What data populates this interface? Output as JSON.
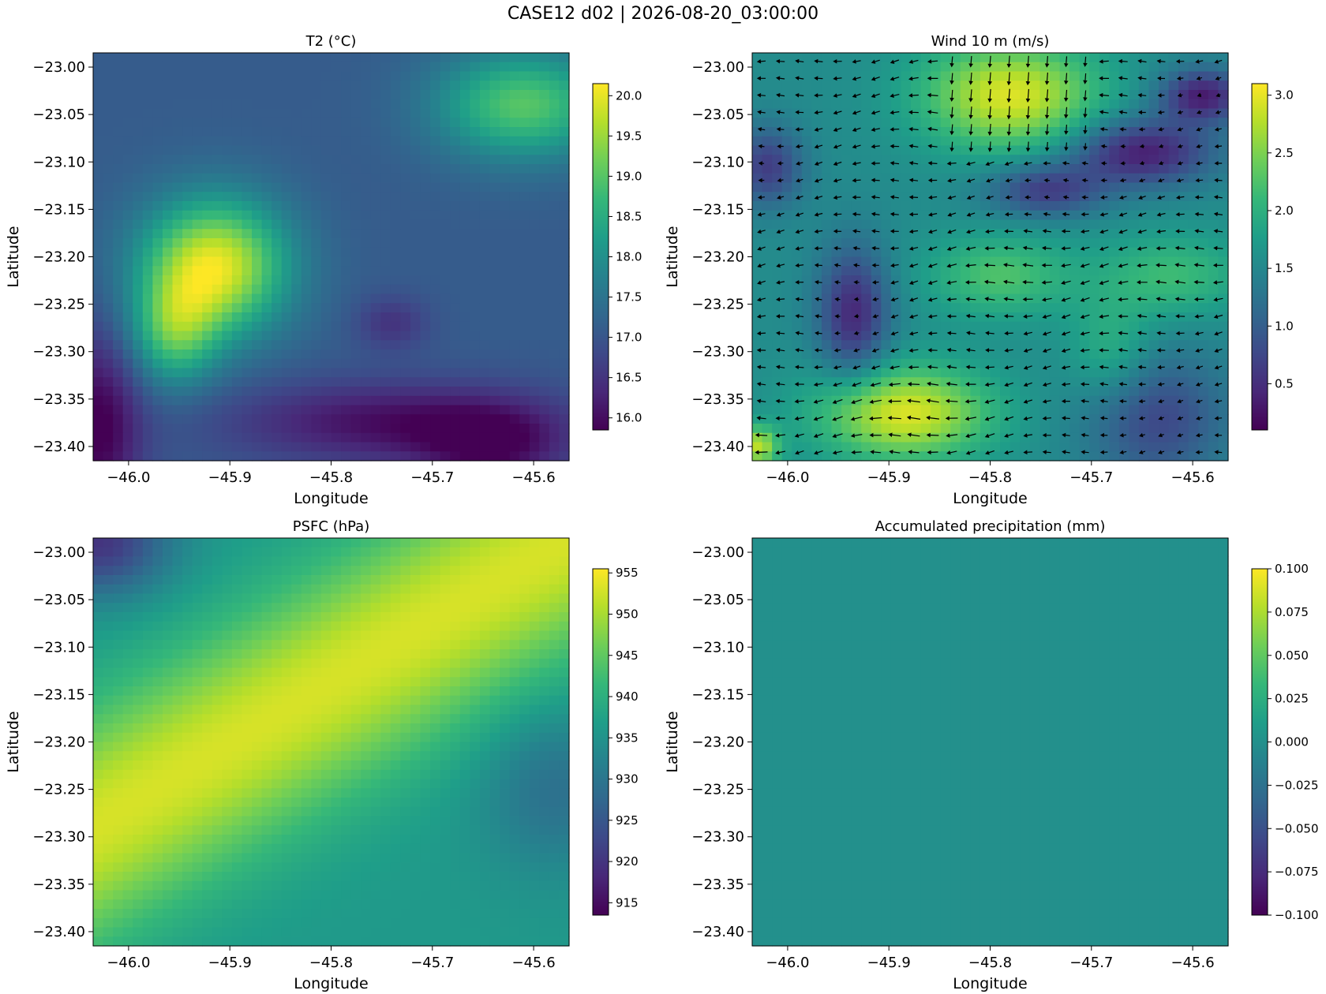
{
  "figure": {
    "suptitle": "CASE12 d02 | 2026-08-20_03:00:00"
  },
  "chart_data": [
    {
      "type": "heatmap",
      "title": "T2 (°C)",
      "xlabel": "Longitude",
      "ylabel": "Latitude",
      "colormap": "viridis",
      "xlim": [
        -46.035,
        -45.565
      ],
      "ylim": [
        -23.415,
        -22.985
      ],
      "xticks": [
        "−46.0",
        "−45.9",
        "−45.8",
        "−45.7",
        "−45.6"
      ],
      "yticks": [
        "−23.00",
        "−23.05",
        "−23.10",
        "−23.15",
        "−23.20",
        "−23.25",
        "−23.30",
        "−23.35",
        "−23.40"
      ],
      "colorbar": {
        "vmin": 15.85,
        "vmax": 20.15,
        "ticks": [
          "16.0",
          "16.5",
          "17.0",
          "17.5",
          "18.0",
          "18.5",
          "19.0",
          "19.5",
          "20.0"
        ]
      },
      "field": {
        "base": 17.1,
        "blobs": [
          {
            "lon": -45.915,
            "lat": -23.21,
            "rlon": 0.05,
            "rlat": 0.05,
            "amp": 2.9
          },
          {
            "lon": -45.955,
            "lat": -23.28,
            "rlon": 0.03,
            "rlat": 0.04,
            "amp": 1.6
          },
          {
            "lon": -45.61,
            "lat": -23.04,
            "rlon": 0.06,
            "rlat": 0.04,
            "amp": 1.9
          },
          {
            "lon": -45.74,
            "lat": -23.375,
            "rlon": 0.11,
            "rlat": 0.03,
            "amp": -1.1
          },
          {
            "lon": -46.03,
            "lat": -23.38,
            "rlon": 0.03,
            "rlat": 0.07,
            "amp": -1.3
          },
          {
            "lon": -45.74,
            "lat": -23.27,
            "rlon": 0.025,
            "rlat": 0.02,
            "amp": -0.6
          },
          {
            "lon": -45.64,
            "lat": -23.4,
            "rlon": 0.05,
            "rlat": 0.03,
            "amp": -1.0
          }
        ]
      }
    },
    {
      "type": "heatmap",
      "title": "Wind 10 m (m/s)",
      "xlabel": "Longitude",
      "ylabel": "Latitude",
      "colormap": "viridis",
      "overlay": "quiver",
      "xlim": [
        -46.035,
        -45.565
      ],
      "ylim": [
        -23.415,
        -22.985
      ],
      "xticks": [
        "−46.0",
        "−45.9",
        "−45.8",
        "−45.7",
        "−45.6"
      ],
      "yticks": [
        "−23.00",
        "−23.05",
        "−23.10",
        "−23.15",
        "−23.20",
        "−23.25",
        "−23.30",
        "−23.35",
        "−23.40"
      ],
      "colorbar": {
        "vmin": 0.1,
        "vmax": 3.1,
        "ticks": [
          "0.5",
          "1.0",
          "1.5",
          "2.0",
          "2.5",
          "3.0"
        ]
      },
      "field": {
        "base": 1.55,
        "blobs": [
          {
            "lon": -45.78,
            "lat": -23.03,
            "rlon": 0.06,
            "rlat": 0.04,
            "amp": 1.4
          },
          {
            "lon": -45.885,
            "lat": -23.365,
            "rlon": 0.06,
            "rlat": 0.035,
            "amp": 1.4
          },
          {
            "lon": -45.79,
            "lat": -23.22,
            "rlon": 0.05,
            "rlat": 0.03,
            "amp": 0.7
          },
          {
            "lon": -45.62,
            "lat": -23.22,
            "rlon": 0.05,
            "rlat": 0.03,
            "amp": 0.6
          },
          {
            "lon": -45.68,
            "lat": -23.3,
            "rlon": 0.03,
            "rlat": 0.04,
            "amp": 0.5
          },
          {
            "lon": -45.65,
            "lat": -23.09,
            "rlon": 0.05,
            "rlat": 0.025,
            "amp": -1.2
          },
          {
            "lon": -45.59,
            "lat": -23.03,
            "rlon": 0.03,
            "rlat": 0.02,
            "amp": -1.2
          },
          {
            "lon": -45.745,
            "lat": -23.13,
            "rlon": 0.04,
            "rlat": 0.02,
            "amp": -0.9
          },
          {
            "lon": -45.935,
            "lat": -23.26,
            "rlon": 0.025,
            "rlat": 0.05,
            "amp": -1.1
          },
          {
            "lon": -46.02,
            "lat": -23.105,
            "rlon": 0.025,
            "rlat": 0.03,
            "amp": -0.9
          },
          {
            "lon": -45.635,
            "lat": -23.37,
            "rlon": 0.05,
            "rlat": 0.05,
            "amp": -0.8
          },
          {
            "lon": -46.03,
            "lat": -23.4,
            "rlon": 0.015,
            "rlat": 0.015,
            "amp": 1.2
          }
        ]
      }
    },
    {
      "type": "heatmap",
      "title": "PSFC (hPa)",
      "xlabel": "Longitude",
      "ylabel": "Latitude",
      "colormap": "viridis",
      "xlim": [
        -46.035,
        -45.565
      ],
      "ylim": [
        -23.415,
        -22.985
      ],
      "xticks": [
        "−46.0",
        "−45.9",
        "−45.8",
        "−45.7",
        "−45.6"
      ],
      "yticks": [
        "−23.00",
        "−23.05",
        "−23.10",
        "−23.15",
        "−23.20",
        "−23.25",
        "−23.30",
        "−23.35",
        "−23.40"
      ],
      "colorbar": {
        "vmin": 913.5,
        "vmax": 955.5,
        "ticks": [
          "915",
          "920",
          "925",
          "930",
          "935",
          "940",
          "945",
          "950",
          "955"
        ]
      },
      "field": {
        "ridge": {
          "lon0": -46.035,
          "lat0": -23.29,
          "lon1": -45.565,
          "lat1": -22.985,
          "peak": 953,
          "width": 0.075
        },
        "base": 936,
        "blobs": [
          {
            "lon": -45.58,
            "lat": -23.25,
            "rlon": 0.05,
            "rlat": 0.06,
            "amp": -7
          },
          {
            "lon": -46.03,
            "lat": -22.99,
            "rlon": 0.05,
            "rlat": 0.04,
            "amp": -16
          }
        ]
      }
    },
    {
      "type": "heatmap",
      "title": "Accumulated precipitation (mm)",
      "xlabel": "Longitude",
      "ylabel": "Latitude",
      "colormap": "viridis",
      "xlim": [
        -46.035,
        -45.565
      ],
      "ylim": [
        -23.415,
        -22.985
      ],
      "xticks": [
        "−46.0",
        "−45.9",
        "−45.8",
        "−45.7",
        "−45.6"
      ],
      "yticks": [
        "−23.00",
        "−23.05",
        "−23.10",
        "−23.15",
        "−23.20",
        "−23.25",
        "−23.30",
        "−23.35",
        "−23.40"
      ],
      "colorbar": {
        "vmin": -0.1,
        "vmax": 0.1,
        "ticks": [
          "−0.100",
          "−0.075",
          "−0.050",
          "−0.025",
          "0.000",
          "0.025",
          "0.050",
          "0.075",
          "0.100"
        ]
      },
      "field": {
        "base": 0.0,
        "blobs": []
      }
    }
  ]
}
